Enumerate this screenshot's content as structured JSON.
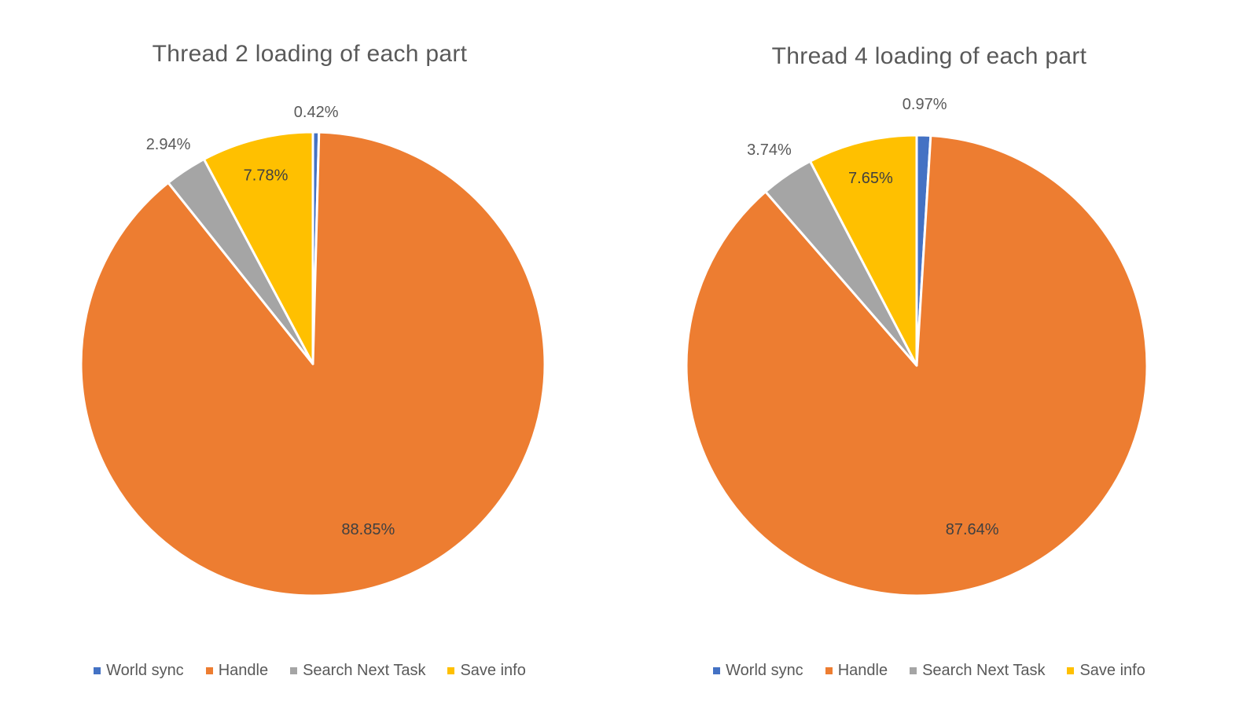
{
  "charts": [
    {
      "title": "Thread 2 loading of each part",
      "legend": [
        "World sync",
        "Handle",
        "Search Next Task",
        "Save info"
      ]
    },
    {
      "title": "Thread 4 loading of each part",
      "legend": [
        "World sync",
        "Handle",
        "Search Next Task",
        "Save info"
      ]
    }
  ],
  "colors": {
    "World sync": "#4472C4",
    "Handle": "#ED7D31",
    "Search Next Task": "#A5A5A5",
    "Save info": "#FFC000"
  },
  "chart_data": [
    {
      "type": "pie",
      "title": "Thread 2 loading of each part",
      "categories": [
        "World sync",
        "Handle",
        "Search Next Task",
        "Save info"
      ],
      "values": [
        0.42,
        88.85,
        2.94,
        7.78
      ],
      "labels": [
        "0.42%",
        "88.85%",
        "2.94%",
        "7.78%"
      ],
      "legend_position": "bottom"
    },
    {
      "type": "pie",
      "title": "Thread 4 loading of each part",
      "categories": [
        "World sync",
        "Handle",
        "Search Next Task",
        "Save info"
      ],
      "values": [
        0.97,
        87.64,
        3.74,
        7.65
      ],
      "labels": [
        "0.97%",
        "87.64%",
        "3.74%",
        "7.65%"
      ],
      "legend_position": "bottom"
    }
  ]
}
